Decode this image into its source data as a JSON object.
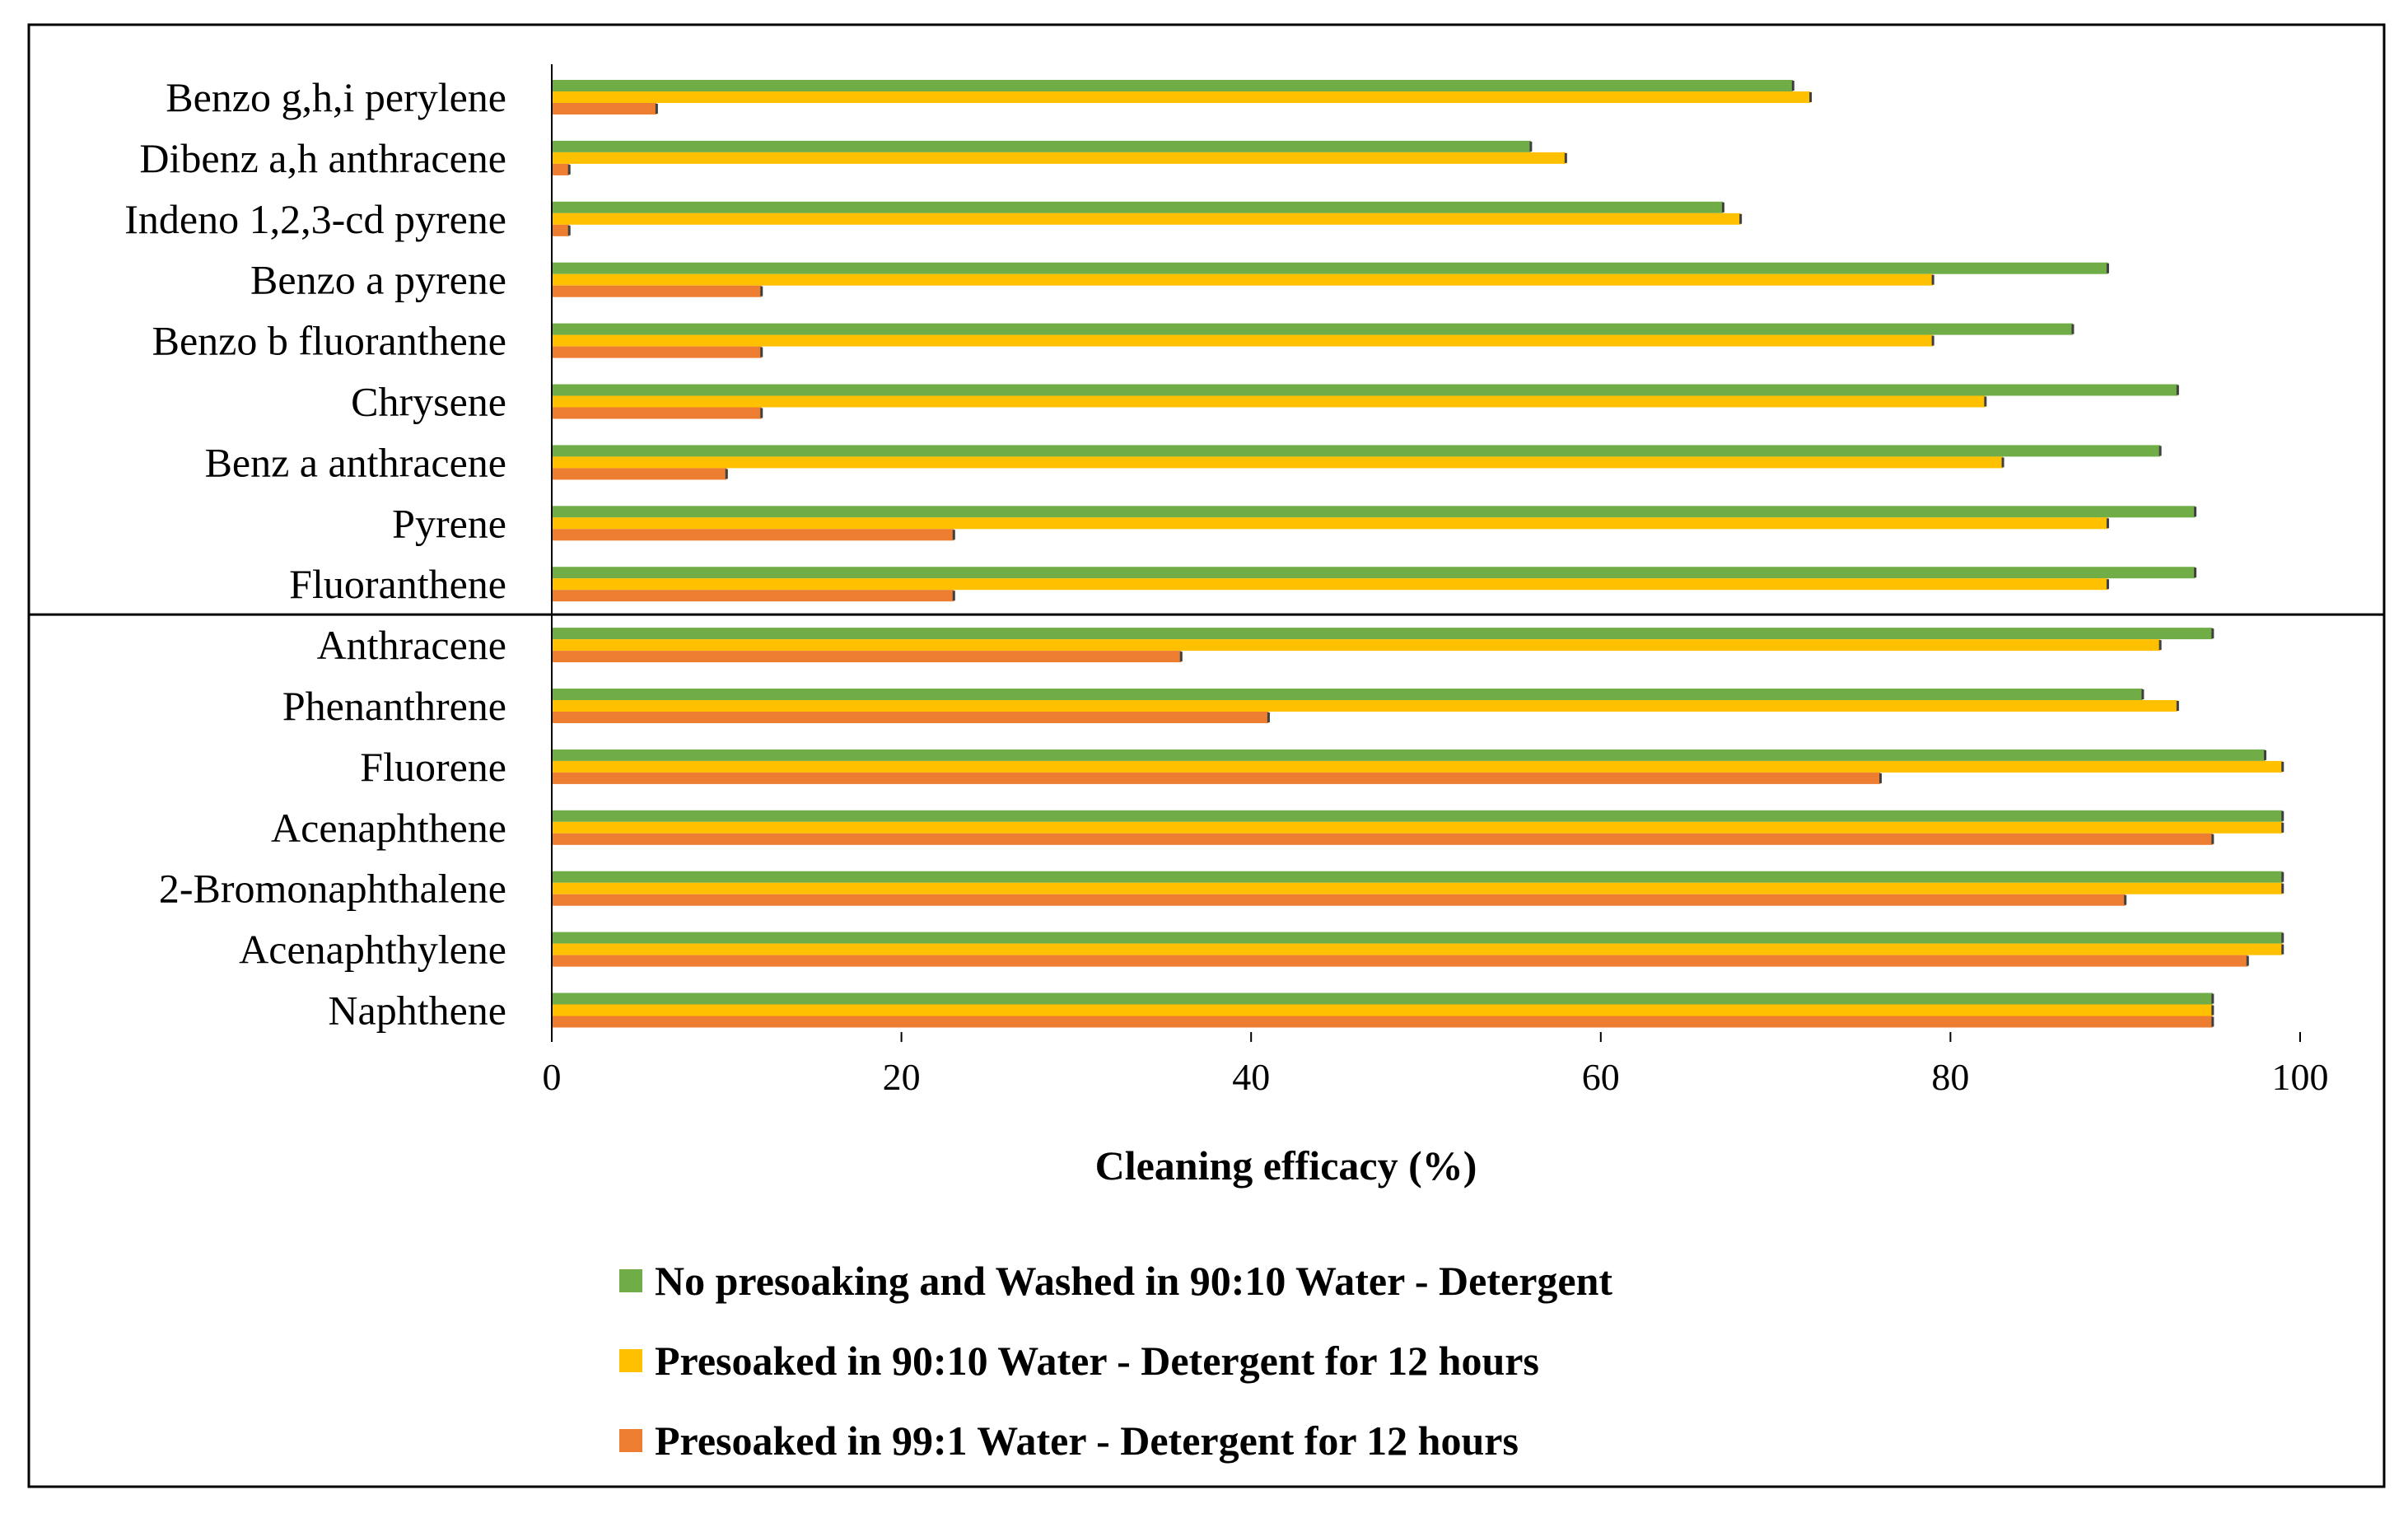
{
  "chart_data": {
    "type": "bar",
    "orientation": "horizontal",
    "title": "",
    "xlabel": "Cleaning efficacy (%)",
    "ylabel": "",
    "xlim": [
      0,
      100
    ],
    "xticks": [
      0,
      20,
      40,
      60,
      80,
      100
    ],
    "grid": false,
    "error_bars": true,
    "legend_position": "bottom",
    "categories": [
      "Benzo g,h,i perylene",
      "Dibenz a,h anthracene",
      "Indeno 1,2,3-cd pyrene",
      "Benzo a pyrene",
      "Benzo b fluoranthene",
      "Chrysene",
      "Benz a anthracene",
      "Pyrene",
      "Fluoranthene",
      "Anthracene",
      "Phenanthrene",
      "Fluorene",
      "Acenaphthene",
      "2-Bromonaphthalene",
      "Acenaphthylene",
      "Naphthene"
    ],
    "divider_after_index": 8,
    "series": [
      {
        "name": "No presoaking and Washed in 90:10 Water - Detergent",
        "color": "#70ad47",
        "values": [
          71,
          56,
          67,
          89,
          87,
          93,
          92,
          94,
          94,
          95,
          91,
          98,
          99,
          99,
          99,
          95
        ]
      },
      {
        "name": "Presoaked in 90:10 Water - Detergent for 12 hours",
        "color": "#ffc000",
        "values": [
          72,
          58,
          68,
          79,
          79,
          82,
          83,
          89,
          89,
          92,
          93,
          99,
          99,
          99,
          99,
          95
        ]
      },
      {
        "name": "Presoaked in 99:1 Water - Detergent for 12 hours",
        "color": "#ed7d31",
        "values": [
          6,
          1,
          1,
          12,
          12,
          12,
          10,
          23,
          23,
          36,
          41,
          76,
          95,
          90,
          97,
          95
        ]
      }
    ]
  }
}
